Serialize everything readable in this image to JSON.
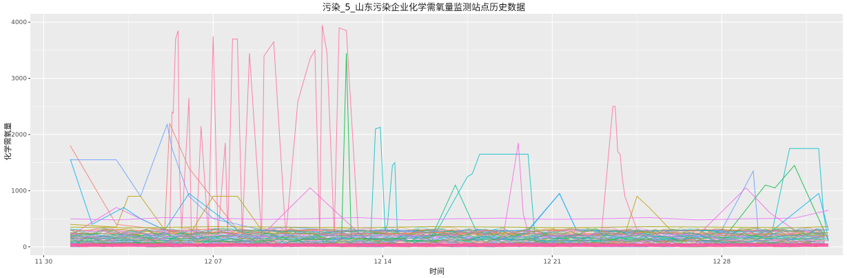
{
  "chart_data": {
    "type": "line",
    "title": "污染_5_山东污染企业化学需氧量监测站点历史数据",
    "xlabel": "时间",
    "ylabel": "化学需氧量",
    "x_ticks": [
      "11 30",
      "12 07",
      "12 14",
      "12 21",
      "12 28"
    ],
    "x_tick_days": [
      0,
      7,
      14,
      21,
      28
    ],
    "xlim_days": [
      -0.55,
      33.0
    ],
    "y_ticks": [
      0,
      1000,
      2000,
      3000,
      4000
    ],
    "ylim": [
      -150,
      4150
    ],
    "grid": true,
    "series_count_note_hidden": "",
    "series": [
      {
        "color": "#F8766D",
        "x": [
          1.1,
          2,
          3,
          4,
          5,
          6,
          7,
          8,
          9,
          10,
          11,
          12,
          13,
          14,
          15,
          16,
          17,
          18,
          19,
          20,
          21,
          22,
          23,
          24,
          25,
          26,
          27,
          28,
          29,
          30,
          31,
          32.4
        ],
        "y": [
          300,
          280,
          310,
          290,
          260,
          300,
          320,
          280,
          300,
          290,
          310,
          270,
          280,
          300,
          290,
          310,
          280,
          300,
          290,
          270,
          300,
          310,
          280,
          300,
          290,
          280,
          300,
          310,
          290,
          300,
          280,
          300
        ]
      },
      {
        "color": "#FF6C9C",
        "x": [
          1.1,
          5.2,
          5.3,
          5.35,
          5.45,
          5.55,
          5.6,
          5.7,
          6.0,
          6.1,
          6.3,
          6.5,
          6.8,
          7.0,
          7.2,
          7.5,
          7.6,
          7.8,
          8.0,
          8.2,
          8.5,
          9.0,
          9.1,
          9.5,
          10.0,
          10.5,
          11.0,
          11.2,
          11.4,
          11.5,
          11.7,
          12.0,
          12.2,
          12.5,
          13.0,
          14,
          15,
          16,
          17,
          18,
          19,
          20,
          21,
          22,
          23,
          23.5,
          23.6,
          23.7,
          23.8,
          23.9,
          24.0,
          24.5,
          25,
          26,
          27,
          28,
          29,
          30,
          31,
          32.4
        ],
        "y": [
          50,
          60,
          2400,
          2380,
          3700,
          3850,
          1500,
          300,
          2650,
          200,
          150,
          2150,
          200,
          3750,
          200,
          1850,
          200,
          3700,
          3700,
          200,
          3450,
          200,
          3400,
          3650,
          200,
          2600,
          3350,
          3500,
          200,
          3950,
          3450,
          200,
          3900,
          3850,
          200,
          80,
          60,
          70,
          80,
          60,
          70,
          80,
          60,
          70,
          80,
          2500,
          2500,
          1700,
          1650,
          1200,
          900,
          300,
          120,
          100,
          90,
          110,
          100,
          120,
          90,
          110
        ]
      },
      {
        "color": "#F8766D",
        "x": [
          1.1,
          3,
          5,
          5.2,
          6,
          8,
          10,
          12,
          14,
          16,
          18,
          20,
          22,
          24,
          26,
          28,
          30,
          32.4
        ],
        "y": [
          1800,
          400,
          300,
          2200,
          1400,
          300,
          280,
          300,
          270,
          300,
          290,
          280,
          300,
          270,
          300,
          290,
          280,
          300
        ]
      },
      {
        "color": "#00BA38",
        "x": [
          1.1,
          4,
          6,
          8,
          10,
          12.3,
          12.5,
          12.7,
          14,
          16,
          18,
          20,
          22,
          24,
          26,
          28,
          29.8,
          30.2,
          31,
          32.4
        ],
        "y": [
          100,
          120,
          110,
          100,
          130,
          120,
          3450,
          150,
          120,
          110,
          130,
          120,
          110,
          130,
          120,
          110,
          1100,
          1050,
          1450,
          120
        ]
      },
      {
        "color": "#00BFC4",
        "x": [
          1.1,
          12,
          13.5,
          13.7,
          13.9,
          14.1,
          14.2,
          14.4,
          14.5,
          14.6,
          14.8,
          16,
          17.5,
          17.7,
          18,
          20,
          20.3,
          21,
          22,
          24,
          26,
          28,
          30,
          30.8,
          31,
          32,
          32.2,
          32.4
        ],
        "y": [
          80,
          90,
          100,
          2100,
          2130,
          300,
          400,
          1450,
          1500,
          300,
          100,
          100,
          1250,
          1300,
          1650,
          1650,
          100,
          90,
          100,
          110,
          100,
          90,
          110,
          1750,
          1750,
          1750,
          600,
          100
        ]
      },
      {
        "color": "#619CFF",
        "x": [
          1.1,
          3,
          4,
          5.1,
          5.3,
          6,
          7,
          8,
          9,
          10,
          12,
          14,
          16,
          18,
          20,
          21.3,
          22,
          23,
          24,
          26,
          28,
          29.3,
          29.5,
          30,
          32.4
        ],
        "y": [
          1550,
          1550,
          900,
          2180,
          1750,
          900,
          500,
          400,
          300,
          350,
          300,
          280,
          260,
          300,
          280,
          950,
          300,
          280,
          300,
          280,
          300,
          1350,
          300,
          280,
          300
        ]
      },
      {
        "color": "#B79F00",
        "x": [
          1.1,
          3,
          3.5,
          4,
          5,
          6,
          7,
          8,
          9,
          10,
          12,
          14,
          16,
          18,
          20,
          22,
          24,
          24.5,
          25,
          26,
          28,
          30,
          32.4
        ],
        "y": [
          400,
          350,
          900,
          900,
          300,
          200,
          900,
          900,
          300,
          250,
          200,
          250,
          200,
          220,
          210,
          200,
          220,
          900,
          700,
          250,
          200,
          220,
          200
        ]
      },
      {
        "color": "#F564E3",
        "x": [
          1.1,
          3,
          5,
          7,
          9,
          11,
          13,
          15,
          17,
          19,
          19.6,
          19.8,
          20,
          21,
          23,
          25,
          27,
          29,
          30,
          31,
          32.4
        ],
        "y": [
          200,
          700,
          300,
          250,
          200,
          1050,
          250,
          200,
          230,
          250,
          1850,
          600,
          250,
          200,
          230,
          250,
          200,
          1050,
          600,
          300,
          200
        ]
      },
      {
        "color": "#00B0F6",
        "x": [
          1.1,
          2,
          3.3,
          4,
          5,
          6,
          8,
          10,
          12,
          14,
          16,
          18,
          20,
          21.3,
          22,
          23,
          24,
          26,
          28,
          30,
          32,
          32.4
        ],
        "y": [
          1560,
          400,
          700,
          500,
          300,
          950,
          300,
          280,
          260,
          300,
          280,
          260,
          300,
          950,
          300,
          280,
          260,
          300,
          280,
          260,
          950,
          300
        ]
      },
      {
        "color": "#00C08B",
        "x": [
          1.1,
          2,
          4,
          6,
          8,
          10,
          12,
          14,
          16,
          17,
          18,
          20,
          22,
          24,
          26,
          28,
          30,
          32.4
        ],
        "y": [
          150,
          140,
          160,
          150,
          140,
          160,
          150,
          140,
          160,
          1100,
          150,
          140,
          160,
          150,
          140,
          160,
          150,
          140
        ]
      },
      {
        "color": "#FF6C9C",
        "x": [
          1.1,
          2,
          3,
          4,
          5,
          6,
          7,
          8,
          9,
          10,
          11,
          12,
          13,
          14,
          15,
          16,
          17,
          18,
          19,
          20,
          21,
          22,
          23,
          24,
          25,
          26,
          27,
          28,
          29,
          30,
          31,
          32,
          32.4
        ],
        "y": [
          20,
          40,
          30,
          50,
          30,
          40,
          20,
          50,
          30,
          40,
          30,
          20,
          40,
          30,
          50,
          30,
          40,
          20,
          30,
          40,
          30,
          50,
          30,
          40,
          20,
          30,
          50,
          40,
          30,
          20,
          40,
          30,
          20
        ]
      },
      {
        "color": "#E76BF3",
        "x": [
          1.1,
          3,
          5,
          7,
          9,
          11,
          13,
          15,
          17,
          19,
          21,
          23,
          25,
          27,
          29,
          31,
          32.4
        ],
        "y": [
          500,
          480,
          520,
          510,
          490,
          500,
          520,
          480,
          500,
          510,
          490,
          500,
          520,
          480,
          500,
          510,
          650
        ]
      },
      {
        "color": "#A3A500",
        "x": [
          1.1,
          4,
          7,
          10,
          13,
          16,
          19,
          22,
          25,
          28,
          31,
          32.4
        ],
        "y": [
          350,
          340,
          360,
          350,
          340,
          360,
          350,
          340,
          360,
          350,
          340,
          360
        ]
      },
      {
        "color": "#39B600",
        "x": [
          1.1,
          4,
          7,
          10,
          13,
          16,
          19,
          22,
          25,
          28,
          31,
          32.4
        ],
        "y": [
          60,
          70,
          50,
          60,
          70,
          50,
          60,
          70,
          50,
          60,
          70,
          50
        ]
      },
      {
        "color": "#9590FF",
        "x": [
          1.1,
          4,
          7,
          10,
          13,
          16,
          19,
          22,
          25,
          28,
          31,
          32.4
        ],
        "y": [
          180,
          200,
          170,
          190,
          200,
          180,
          170,
          200,
          190,
          180,
          200,
          170
        ]
      },
      {
        "color": "#D89000",
        "x": [
          1.1,
          4,
          7,
          10,
          13,
          16,
          19,
          22,
          25,
          28,
          31,
          32.4
        ],
        "y": [
          240,
          230,
          250,
          240,
          230,
          250,
          240,
          230,
          250,
          240,
          230,
          250
        ]
      }
    ]
  }
}
